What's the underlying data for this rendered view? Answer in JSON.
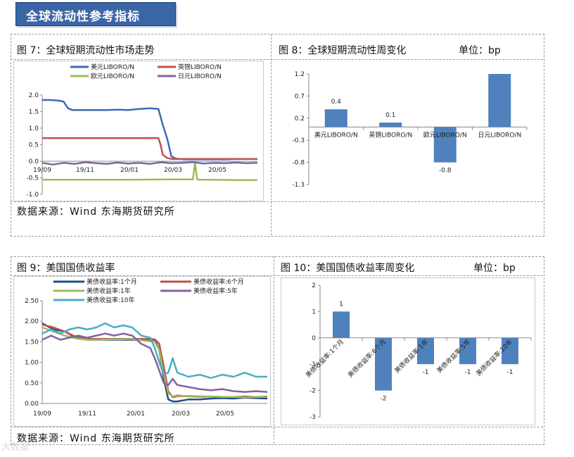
{
  "header": {
    "title": "全球流动性参考指标"
  },
  "panels": {
    "fig7": {
      "title": "图 7：全球短期流动性市场走势"
    },
    "fig8": {
      "title": "图 8：全球短期流动性周变化",
      "unit": "单位：bp"
    },
    "fig9": {
      "title": "图 9：美国国债收益率"
    },
    "fig10": {
      "title": "图 10：美国国债收益率周变化",
      "unit": "单位：bp"
    }
  },
  "source_top": "数据来源：Wind  东海期货研究所",
  "source_bottom": "数据来源：Wind  东海期货研究所",
  "watermark": "大数据",
  "chart_data": [
    {
      "id": "fig7",
      "type": "line",
      "ylim": [
        -1.0,
        2.0
      ],
      "yticks": [
        "2.0",
        "1.5",
        "1.0",
        "0.5",
        "0.0",
        "-0.5",
        "-1.0"
      ],
      "xticks": [
        "19/09",
        "19/11",
        "20/01",
        "20/03",
        "20/05"
      ],
      "grid": false,
      "legend_position": "top",
      "series": [
        {
          "name": "美元LIBORO/N",
          "color": "#3d6cb5",
          "x": [
            0,
            4,
            8,
            10,
            12,
            14,
            16,
            18,
            20,
            24,
            30,
            35,
            40,
            45,
            50,
            54,
            56,
            58,
            60,
            62,
            66,
            70,
            75,
            80,
            85,
            90,
            95,
            100
          ],
          "y": [
            1.85,
            1.85,
            1.83,
            1.8,
            1.6,
            1.55,
            1.55,
            1.55,
            1.55,
            1.55,
            1.55,
            1.56,
            1.55,
            1.58,
            1.6,
            1.58,
            1.1,
            0.7,
            0.15,
            0.08,
            0.06,
            0.06,
            0.06,
            0.06,
            0.06,
            0.07,
            0.07,
            0.07
          ]
        },
        {
          "name": "英镑LIBORO/N",
          "color": "#c0504d",
          "x": [
            0,
            10,
            20,
            30,
            40,
            50,
            54,
            55,
            56,
            58,
            60,
            70,
            80,
            90,
            100
          ],
          "y": [
            0.7,
            0.7,
            0.7,
            0.7,
            0.7,
            0.7,
            0.7,
            0.5,
            0.2,
            0.1,
            0.07,
            0.07,
            0.07,
            0.07,
            0.07
          ]
        },
        {
          "name": "欧元LIBORO/N",
          "color": "#9bbb59",
          "x": [
            0,
            20,
            40,
            60,
            70,
            71,
            72,
            73,
            74,
            80,
            90,
            100
          ],
          "y": [
            -0.56,
            -0.56,
            -0.56,
            -0.55,
            -0.55,
            -0.05,
            -0.55,
            -0.56,
            -0.56,
            -0.56,
            -0.57,
            -0.57
          ]
        },
        {
          "name": "日元LIBORO/N",
          "color": "#8064a2",
          "x": [
            0,
            5,
            10,
            15,
            20,
            25,
            30,
            35,
            40,
            45,
            50,
            55,
            60,
            65,
            70,
            75,
            80,
            85,
            90,
            95,
            100
          ],
          "y": [
            -0.05,
            -0.1,
            -0.05,
            -0.08,
            -0.03,
            -0.06,
            -0.08,
            -0.04,
            -0.07,
            -0.05,
            -0.08,
            -0.03,
            -0.06,
            -0.05,
            -0.03,
            -0.07,
            -0.05,
            -0.06,
            -0.04,
            -0.06,
            -0.05
          ]
        }
      ]
    },
    {
      "id": "fig8",
      "type": "bar",
      "color": "#4f81bd",
      "categories": [
        "美元LIBORO/N",
        "英镑LIBORO/N",
        "欧元LIBORO/N",
        "日元LIBORO/N"
      ],
      "values": [
        0.4,
        0.1,
        -0.8,
        1.2
      ],
      "labels": [
        "0.4",
        "0.1",
        "-0.8",
        ""
      ],
      "ylim": [
        -1.3,
        1.2
      ],
      "yticks": [
        "1.2",
        "0.7",
        "0.2",
        "-0.3",
        "-0.8",
        "-1.3"
      ]
    },
    {
      "id": "fig9",
      "type": "line",
      "ylim": [
        0.0,
        2.5
      ],
      "yticks": [
        "2.50",
        "2.00",
        "1.50",
        "1.00",
        "0.50",
        "0.00"
      ],
      "xticks": [
        "19/09",
        "19/11",
        "20/01",
        "20/03",
        "20/05"
      ],
      "grid": false,
      "legend_position": "top",
      "series": [
        {
          "name": "美债收益率:1个月",
          "color": "#1f4e8c",
          "x": [
            0,
            5,
            10,
            15,
            20,
            25,
            30,
            35,
            40,
            45,
            50,
            52,
            54,
            56,
            58,
            60,
            65,
            70,
            75,
            80,
            85,
            90,
            95,
            100
          ],
          "y": [
            1.95,
            1.8,
            1.75,
            1.6,
            1.55,
            1.55,
            1.55,
            1.55,
            1.55,
            1.55,
            1.55,
            1.3,
            0.6,
            0.1,
            0.05,
            0.05,
            0.1,
            0.1,
            0.12,
            0.13,
            0.12,
            0.14,
            0.13,
            0.12
          ]
        },
        {
          "name": "美债收益率:6个月",
          "color": "#c0504d",
          "x": [
            0,
            5,
            10,
            15,
            20,
            25,
            30,
            35,
            40,
            45,
            50,
            52,
            54,
            56,
            58,
            60,
            65,
            70,
            75,
            80,
            85,
            90,
            95,
            100
          ],
          "y": [
            1.92,
            1.85,
            1.75,
            1.62,
            1.57,
            1.57,
            1.57,
            1.57,
            1.57,
            1.57,
            1.56,
            1.45,
            0.9,
            0.3,
            0.15,
            0.18,
            0.18,
            0.17,
            0.17,
            0.16,
            0.16,
            0.17,
            0.16,
            0.17
          ]
        },
        {
          "name": "美债收益率:1年",
          "color": "#9bbb59",
          "x": [
            0,
            5,
            10,
            15,
            20,
            25,
            30,
            35,
            40,
            45,
            50,
            52,
            54,
            56,
            58,
            60,
            65,
            70,
            75,
            80,
            85,
            90,
            95,
            100
          ],
          "y": [
            1.85,
            1.75,
            1.65,
            1.58,
            1.55,
            1.55,
            1.56,
            1.56,
            1.57,
            1.53,
            1.5,
            1.3,
            0.7,
            0.25,
            0.17,
            0.2,
            0.17,
            0.16,
            0.17,
            0.16,
            0.16,
            0.15,
            0.16,
            0.16
          ]
        },
        {
          "name": "美债收益率:5年",
          "color": "#8064a2",
          "x": [
            0,
            4,
            8,
            12,
            16,
            20,
            24,
            28,
            32,
            36,
            40,
            44,
            48,
            50,
            52,
            54,
            56,
            58,
            60,
            65,
            70,
            75,
            80,
            85,
            90,
            95,
            100
          ],
          "y": [
            1.55,
            1.65,
            1.55,
            1.6,
            1.65,
            1.6,
            1.65,
            1.7,
            1.65,
            1.7,
            1.65,
            1.45,
            1.35,
            1.1,
            0.8,
            0.5,
            0.45,
            0.6,
            0.45,
            0.4,
            0.35,
            0.32,
            0.35,
            0.3,
            0.28,
            0.3,
            0.28
          ]
        },
        {
          "name": "美债收益率:10年",
          "color": "#4bacc6",
          "x": [
            0,
            4,
            8,
            12,
            16,
            20,
            24,
            28,
            32,
            36,
            40,
            44,
            48,
            50,
            52,
            54,
            56,
            58,
            60,
            65,
            70,
            75,
            80,
            85,
            90,
            95,
            100
          ],
          "y": [
            1.7,
            1.8,
            1.7,
            1.8,
            1.85,
            1.8,
            1.85,
            1.95,
            1.85,
            1.9,
            1.85,
            1.65,
            1.6,
            1.35,
            1.0,
            0.7,
            0.75,
            1.1,
            0.75,
            0.65,
            0.7,
            0.62,
            0.7,
            0.65,
            0.75,
            0.65,
            0.65
          ]
        }
      ]
    },
    {
      "id": "fig10",
      "type": "bar",
      "color": "#4f81bd",
      "categories": [
        "美债收益率:1个月",
        "美债收益率:6个月",
        "美债收益率:1年",
        "美债收益率:5年",
        "美债收益率:10年"
      ],
      "values": [
        1,
        -2,
        -1,
        -1,
        -1
      ],
      "labels": [
        "1",
        "-2",
        "-1",
        "-1",
        "-1"
      ],
      "ylim": [
        -3,
        2
      ],
      "yticks": [
        "2",
        "1",
        "0",
        "-1",
        "-2",
        "-3"
      ]
    }
  ]
}
